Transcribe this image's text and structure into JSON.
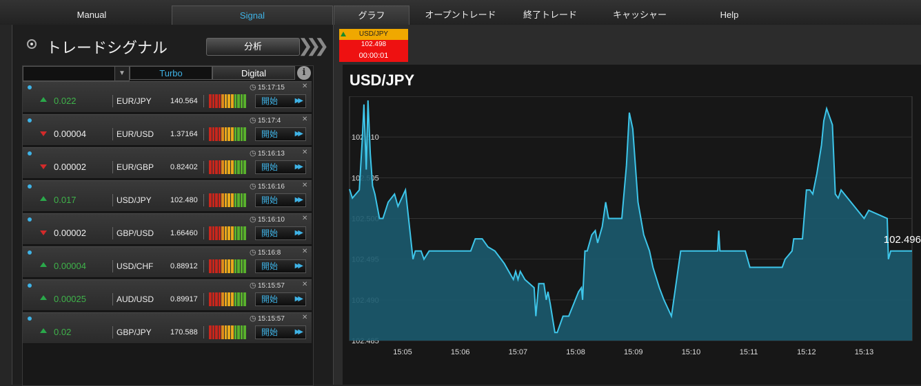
{
  "nav": {
    "manual": "Manual",
    "signal": "Signal",
    "graph": "グラフ",
    "open_trades": "オープントレード",
    "closed_trades": "終了トレード",
    "cashier": "キャッシャー",
    "help": "Help"
  },
  "signals": {
    "title": "トレードシグナル",
    "analyze_label": "分析",
    "filter_value": "",
    "tabs": {
      "turbo": "Turbo",
      "digital": "Digital"
    },
    "start_label": "開始",
    "rows": [
      {
        "direction": "up",
        "change": "0.022",
        "pair": "EUR/JPY",
        "price": "140.564",
        "time": "15:17:15"
      },
      {
        "direction": "down",
        "change": "0.00004",
        "pair": "EUR/USD",
        "price": "1.37164",
        "time": "15:17:4"
      },
      {
        "direction": "down",
        "change": "0.00002",
        "pair": "EUR/GBP",
        "price": "0.82402",
        "time": "15:16:13"
      },
      {
        "direction": "up",
        "change": "0.017",
        "pair": "USD/JPY",
        "price": "102.480",
        "time": "15:16:16"
      },
      {
        "direction": "down",
        "change": "0.00002",
        "pair": "GBP/USD",
        "price": "1.66460",
        "time": "15:16:10"
      },
      {
        "direction": "up",
        "change": "0.00004",
        "pair": "USD/CHF",
        "price": "0.88912",
        "time": "15:16:8"
      },
      {
        "direction": "up",
        "change": "0.00025",
        "pair": "AUD/USD",
        "price": "0.89917",
        "time": "15:15:57"
      },
      {
        "direction": "up",
        "change": "0.02",
        "pair": "GBP/JPY",
        "price": "170.588",
        "time": "15:15:57"
      }
    ]
  },
  "ticker": {
    "pair": "USD/JPY",
    "price": "102.498",
    "countdown": "00:00:01",
    "direction": "up"
  },
  "chart_data": {
    "type": "area",
    "title": "USD/JPY",
    "current_value_label": "102.496",
    "ylim": [
      102.485,
      102.515
    ],
    "yticks": [
      "102.510",
      "102.505",
      "102.500",
      "102.495",
      "102.490",
      "102.485"
    ],
    "xticks": [
      "15:05",
      "15:06",
      "15:07",
      "15:08",
      "15:09",
      "15:10",
      "15:11",
      "15:12",
      "15:13"
    ],
    "xlim": [
      4.08,
      13.83
    ],
    "grid": true,
    "color": "#3ec6ea",
    "series": [
      {
        "values": [
          [
            4.08,
            102.5036
          ],
          [
            4.13,
            102.5025
          ],
          [
            4.25,
            102.5035
          ],
          [
            4.3,
            102.5095
          ],
          [
            4.33,
            102.514
          ],
          [
            4.37,
            102.506
          ],
          [
            4.4,
            102.5145
          ],
          [
            4.44,
            102.508
          ],
          [
            4.48,
            102.504
          ],
          [
            4.52,
            102.503
          ],
          [
            4.6,
            102.5
          ],
          [
            4.66,
            102.5
          ],
          [
            4.75,
            102.502
          ],
          [
            4.86,
            102.503
          ],
          [
            4.92,
            102.5015
          ],
          [
            5.05,
            102.5035
          ],
          [
            5.18,
            102.495
          ],
          [
            5.22,
            102.496
          ],
          [
            5.32,
            102.496
          ],
          [
            5.37,
            102.495
          ],
          [
            5.46,
            102.496
          ],
          [
            5.86,
            102.496
          ],
          [
            6.18,
            102.496
          ],
          [
            6.26,
            102.4975
          ],
          [
            6.38,
            102.4975
          ],
          [
            6.48,
            102.4965
          ],
          [
            6.6,
            102.496
          ],
          [
            6.76,
            102.4945
          ],
          [
            6.88,
            102.493
          ],
          [
            6.92,
            102.4925
          ],
          [
            6.96,
            102.4935
          ],
          [
            7.0,
            102.4925
          ],
          [
            7.04,
            102.4935
          ],
          [
            7.12,
            102.4925
          ],
          [
            7.28,
            102.4915
          ],
          [
            7.31,
            102.488
          ],
          [
            7.36,
            102.492
          ],
          [
            7.45,
            102.492
          ],
          [
            7.49,
            102.49
          ],
          [
            7.52,
            102.491
          ],
          [
            7.56,
            102.4895
          ],
          [
            7.64,
            102.486
          ],
          [
            7.68,
            102.486
          ],
          [
            7.78,
            102.488
          ],
          [
            7.88,
            102.488
          ],
          [
            8.05,
            102.491
          ],
          [
            8.1,
            102.4915
          ],
          [
            8.12,
            102.49
          ],
          [
            8.16,
            102.496
          ],
          [
            8.2,
            102.496
          ],
          [
            8.28,
            102.498
          ],
          [
            8.34,
            102.4985
          ],
          [
            8.38,
            102.497
          ],
          [
            8.46,
            102.499
          ],
          [
            8.52,
            102.502
          ],
          [
            8.57,
            102.5
          ],
          [
            8.68,
            102.5
          ],
          [
            8.75,
            102.5
          ],
          [
            8.8,
            102.5
          ],
          [
            8.88,
            102.5065
          ],
          [
            8.93,
            102.513
          ],
          [
            8.99,
            102.511
          ],
          [
            9.08,
            102.502
          ],
          [
            9.18,
            102.498
          ],
          [
            9.28,
            102.496
          ],
          [
            9.34,
            102.494
          ],
          [
            9.45,
            102.4915
          ],
          [
            9.53,
            102.49
          ],
          [
            9.66,
            102.488
          ],
          [
            9.82,
            102.496
          ],
          [
            10.2,
            102.496
          ],
          [
            10.46,
            102.496
          ],
          [
            10.48,
            102.4985
          ],
          [
            10.5,
            102.496
          ],
          [
            10.94,
            102.496
          ],
          [
            11.02,
            102.494
          ],
          [
            11.22,
            102.494
          ],
          [
            11.58,
            102.494
          ],
          [
            11.63,
            102.495
          ],
          [
            11.75,
            102.496
          ],
          [
            11.78,
            102.4975
          ],
          [
            11.93,
            102.4975
          ],
          [
            12.0,
            102.5035
          ],
          [
            12.06,
            102.5035
          ],
          [
            12.11,
            102.503
          ],
          [
            12.18,
            102.5055
          ],
          [
            12.26,
            102.509
          ],
          [
            12.3,
            102.512
          ],
          [
            12.35,
            102.5135
          ],
          [
            12.4,
            102.5125
          ],
          [
            12.45,
            102.5115
          ],
          [
            12.5,
            102.503
          ],
          [
            12.55,
            102.5025
          ],
          [
            12.6,
            102.5035
          ],
          [
            13.0,
            102.5
          ],
          [
            13.08,
            102.501
          ],
          [
            13.4,
            102.5
          ],
          [
            13.42,
            102.495
          ],
          [
            13.46,
            102.496
          ],
          [
            13.83,
            102.496
          ]
        ]
      }
    ]
  }
}
